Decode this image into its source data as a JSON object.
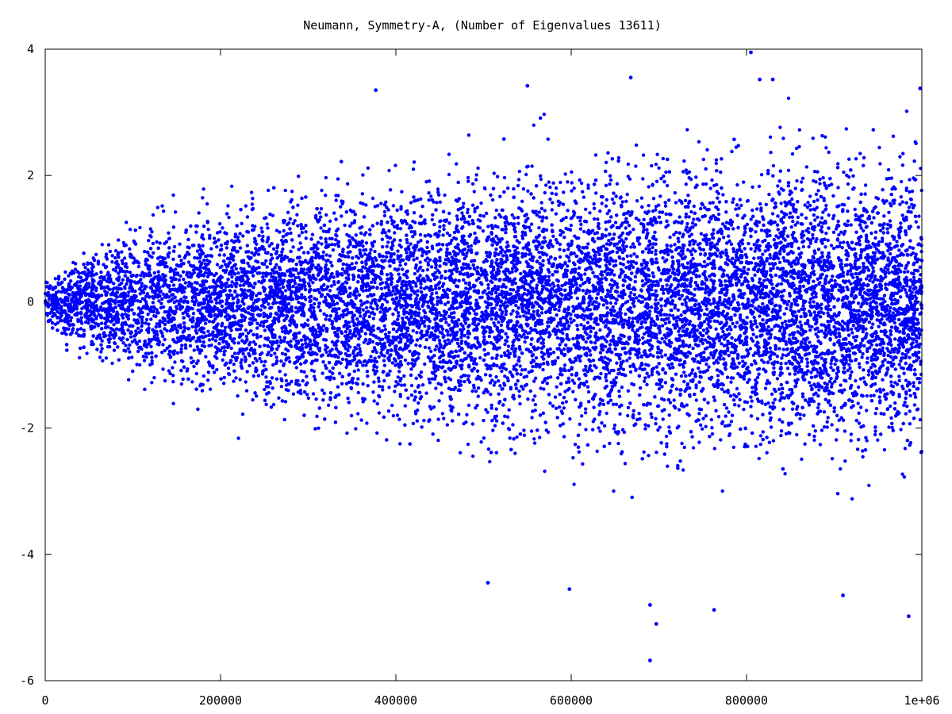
{
  "chart_data": {
    "type": "scatter",
    "title": "Neumann, Symmetry-A, (Number of Eigenvalues 13611)",
    "xlabel": "",
    "ylabel": "",
    "xlim": [
      0,
      1000000
    ],
    "ylim": [
      -6,
      4
    ],
    "x_ticks": [
      0,
      200000,
      400000,
      600000,
      800000,
      1000000
    ],
    "x_tick_labels": [
      "0",
      "200000",
      "400000",
      "600000",
      "800000",
      "1e+06"
    ],
    "y_ticks": [
      -6,
      -4,
      -2,
      0,
      2,
      4
    ],
    "y_tick_labels": [
      "-6",
      "-4",
      "-2",
      "0",
      "2",
      "4"
    ],
    "grid": false,
    "legend": "none",
    "point_count": 13611,
    "series": [
      {
        "color": "#0000ff",
        "x_max": 1000000,
        "envelope_upper": [
          [
            0,
            0.6
          ],
          [
            50000,
            1.3
          ],
          [
            100000,
            1.8
          ],
          [
            200000,
            2.2
          ],
          [
            300000,
            2.5
          ],
          [
            400000,
            2.7
          ],
          [
            500000,
            2.9
          ],
          [
            600000,
            3.0
          ],
          [
            700000,
            3.1
          ],
          [
            800000,
            3.2
          ],
          [
            1000000,
            3.3
          ]
        ],
        "envelope_lower": [
          [
            0,
            -0.6
          ],
          [
            50000,
            -1.5
          ],
          [
            100000,
            -2.1
          ],
          [
            200000,
            -2.8
          ],
          [
            300000,
            -3.2
          ],
          [
            400000,
            -3.5
          ],
          [
            500000,
            -3.8
          ],
          [
            600000,
            -4.1
          ],
          [
            700000,
            -4.3
          ],
          [
            800000,
            -4.4
          ],
          [
            1000000,
            -4.6
          ]
        ],
        "extremes": [
          {
            "x": 805000,
            "y": 3.95
          },
          {
            "x": 668000,
            "y": 3.55
          },
          {
            "x": 815000,
            "y": 3.52
          },
          {
            "x": 830000,
            "y": 3.52
          },
          {
            "x": 550000,
            "y": 3.42
          },
          {
            "x": 998000,
            "y": 3.38
          },
          {
            "x": 377000,
            "y": 3.35
          },
          {
            "x": 690000,
            "y": -5.68
          },
          {
            "x": 697000,
            "y": -5.1
          },
          {
            "x": 985000,
            "y": -4.98
          },
          {
            "x": 763000,
            "y": -4.88
          },
          {
            "x": 690000,
            "y": -4.8
          },
          {
            "x": 505000,
            "y": -4.45
          },
          {
            "x": 598000,
            "y": -4.55
          },
          {
            "x": 910000,
            "y": -4.65
          }
        ]
      }
    ]
  }
}
